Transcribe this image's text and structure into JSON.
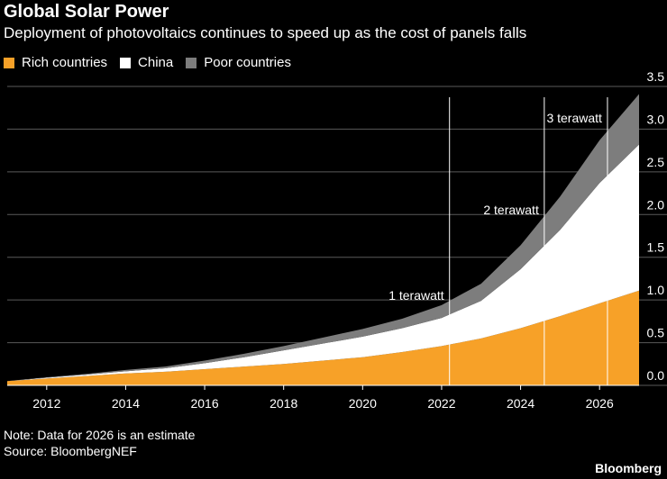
{
  "header": {
    "title": "Global Solar Power",
    "subtitle": "Deployment of photovoltaics continues to speed up as the cost of panels falls"
  },
  "legend": [
    {
      "label": "Rich countries",
      "color": "#f7a128"
    },
    {
      "label": "China",
      "color": "#ffffff"
    },
    {
      "label": "Poor countries",
      "color": "#7d7d7d"
    }
  ],
  "footer": {
    "note": "Note: Data for 2026 is an estimate",
    "source": "Source: BloombergNEF",
    "brand": "Bloomberg"
  },
  "chart_data": {
    "type": "area",
    "stacked": true,
    "x": [
      2011,
      2012,
      2013,
      2014,
      2015,
      2016,
      2017,
      2018,
      2019,
      2020,
      2021,
      2022,
      2023,
      2024,
      2025,
      2026,
      2027
    ],
    "series": [
      {
        "name": "Rich countries",
        "color": "#f7a128",
        "values": [
          0.05,
          0.08,
          0.11,
          0.14,
          0.16,
          0.19,
          0.22,
          0.25,
          0.29,
          0.33,
          0.39,
          0.46,
          0.55,
          0.67,
          0.81,
          0.96,
          1.11
        ]
      },
      {
        "name": "China",
        "color": "#ffffff",
        "values": [
          0.0,
          0.01,
          0.015,
          0.025,
          0.04,
          0.07,
          0.11,
          0.16,
          0.2,
          0.24,
          0.28,
          0.33,
          0.44,
          0.69,
          1.01,
          1.41,
          1.71
        ]
      },
      {
        "name": "Poor countries",
        "color": "#7d7d7d",
        "values": [
          0.0,
          0.005,
          0.01,
          0.015,
          0.02,
          0.03,
          0.04,
          0.05,
          0.07,
          0.09,
          0.11,
          0.15,
          0.2,
          0.28,
          0.39,
          0.5,
          0.59
        ]
      }
    ],
    "x_ticks": [
      "2012",
      "2014",
      "2016",
      "2018",
      "2020",
      "2022",
      "2024",
      "2026"
    ],
    "x_tick_values": [
      2012,
      2014,
      2016,
      2018,
      2020,
      2022,
      2024,
      2026
    ],
    "y_ticks": [
      "0.0",
      "0.5",
      "1.0",
      "1.5",
      "2.0",
      "2.5",
      "3.0",
      "3.5"
    ],
    "y_tick_values": [
      0,
      0.5,
      1,
      1.5,
      2,
      2.5,
      3,
      3.5
    ],
    "xlim": [
      2011,
      2027
    ],
    "ylim": [
      0,
      3.5
    ],
    "y_axis_side": "right",
    "grid": "horizontal",
    "annotations": [
      {
        "label": "1 terawatt",
        "x": 2022.2
      },
      {
        "label": "2 terawatt",
        "x": 2024.6
      },
      {
        "label": "3 terawatt",
        "x": 2026.2
      }
    ]
  }
}
